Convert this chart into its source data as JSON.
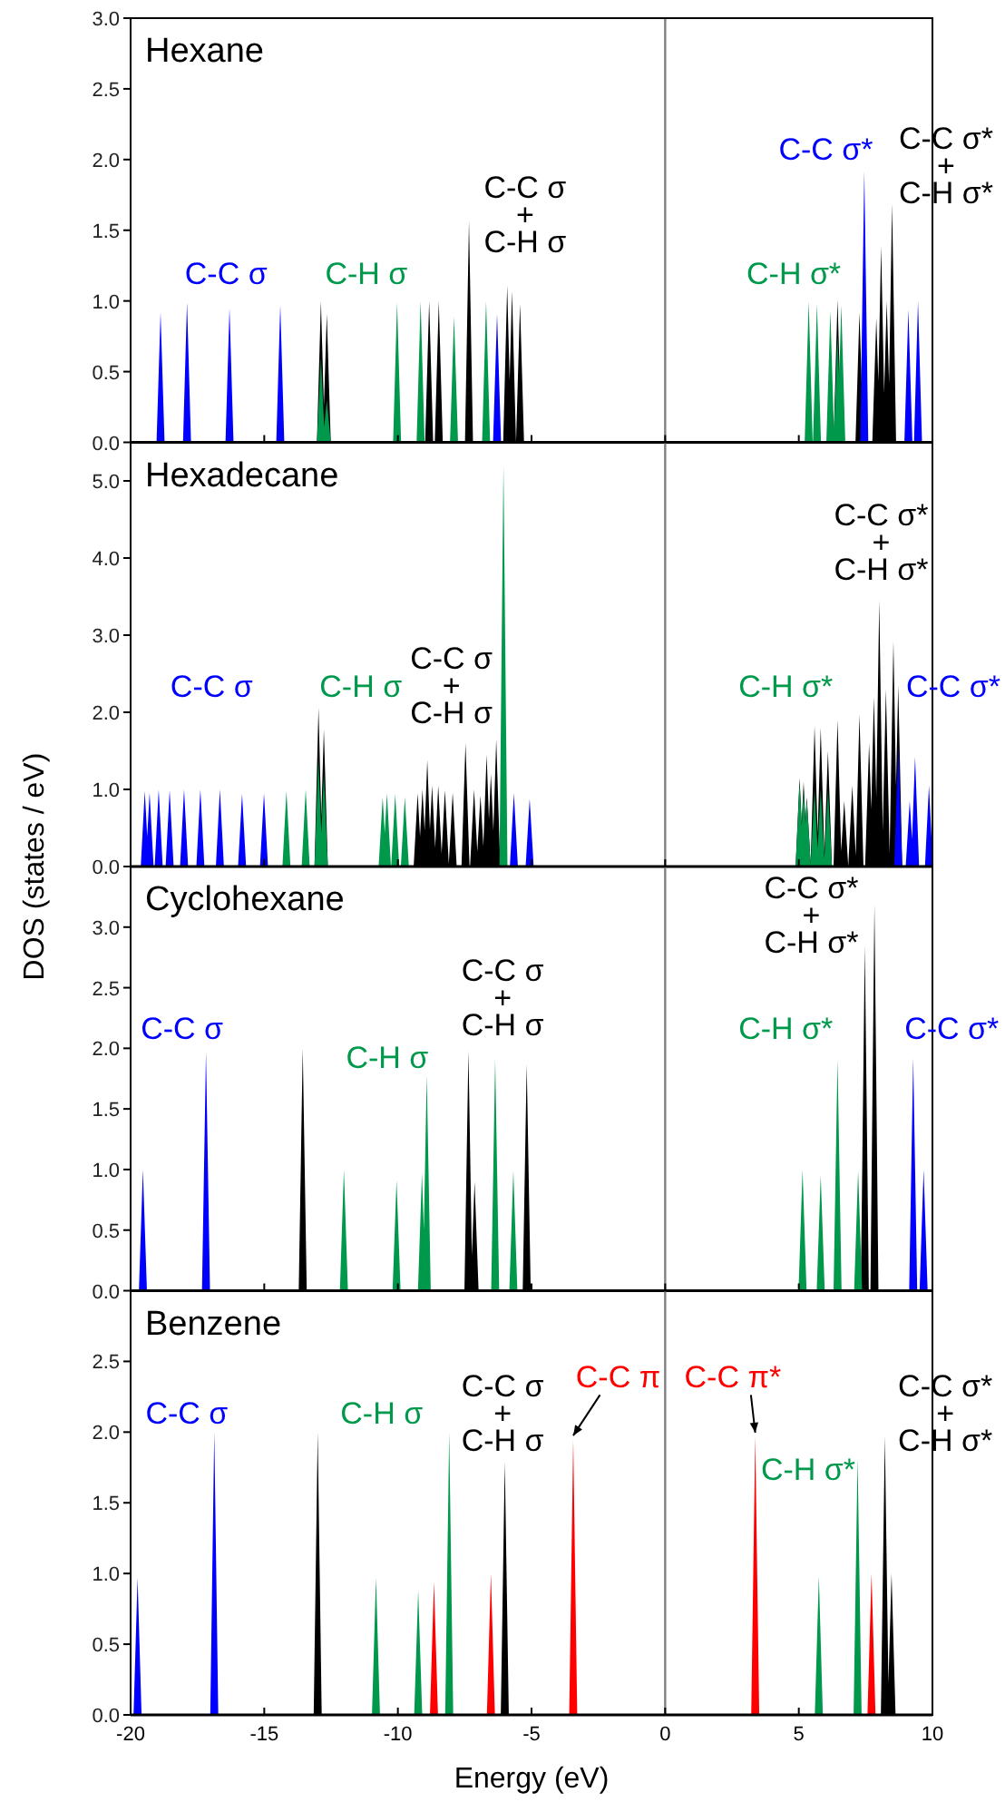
{
  "chart_data": [
    {
      "type": "area",
      "title": "Hexane",
      "xlim": [
        -20,
        10
      ],
      "ylim": [
        0,
        3
      ],
      "xticks": [
        -20,
        -15,
        -10,
        -5,
        0,
        5,
        10
      ],
      "yticks": [
        {
          "value": 0,
          "label": "0.0"
        },
        {
          "value": 0.5,
          "label": "0.5"
        },
        {
          "value": 1,
          "label": "1.0"
        },
        {
          "value": 1.5,
          "label": "1.5"
        },
        {
          "value": 2,
          "label": "2.0"
        },
        {
          "value": 2.5,
          "label": "2.5"
        },
        {
          "value": 3,
          "label": "3.0"
        }
      ],
      "tick_labels": "y",
      "ref_lines": [
        {
          "axis": "x",
          "value": 0,
          "color": "#808080"
        }
      ],
      "series": [
        {
          "name": "C-C σ\n+\nC-H σ",
          "color": "#000000",
          "x": [
            -12.88,
            -12.66,
            -8.83,
            -8.47,
            -7.34,
            -5.91,
            -5.73,
            -5.43
          ],
          "values": [
            1.0,
            0.91,
            1.0,
            1.0,
            1.57,
            1.11,
            1.07,
            0.98
          ]
        },
        {
          "name": "C-C σ*\n+\nC-H σ*",
          "color": "#000000",
          "x": [
            6.45,
            7.27,
            7.9,
            8.08,
            8.29,
            8.49
          ],
          "values": [
            1.01,
            0.92,
            0.88,
            1.39,
            1.0,
            1.69
          ]
        },
        {
          "name": "C-C σ",
          "color": "#0000ff",
          "x": [
            -18.88,
            -17.89,
            -16.3,
            -14.4,
            -6.29
          ],
          "values": [
            0.92,
            0.99,
            0.95,
            0.97,
            0.91
          ]
        },
        {
          "name": "C-C σ*",
          "color": "#0000ff",
          "x": [
            7.45,
            9.1,
            9.46
          ],
          "values": [
            1.92,
            0.94,
            1.0
          ]
        },
        {
          "name": "C-H σ",
          "color": "#00994c",
          "x": [
            -12.88,
            -12.66,
            -10.03,
            -9.15,
            -7.9,
            -6.7
          ],
          "values": [
            0.6,
            0.3,
            0.99,
            1.0,
            0.89,
            1.0
          ]
        },
        {
          "name": "C-H σ*",
          "color": "#00994c",
          "x": [
            5.37,
            5.68,
            6.18,
            6.45,
            6.59
          ],
          "values": [
            1.0,
            0.98,
            0.93,
            0.75,
            0.97
          ]
        }
      ]
    },
    {
      "type": "area",
      "title": "Hexadecane",
      "ylabel": "DOS (states / eV)",
      "xlim": [
        -20,
        10
      ],
      "ylim": [
        0,
        5.5
      ],
      "xticks": [
        -20,
        -15,
        -10,
        -5,
        0,
        5,
        10
      ],
      "yticks": [
        {
          "value": 0,
          "label": "0.0"
        },
        {
          "value": 1,
          "label": "1.0"
        },
        {
          "value": 2,
          "label": "2.0"
        },
        {
          "value": 3,
          "label": "3.0"
        },
        {
          "value": 4,
          "label": "4.0"
        },
        {
          "value": 5,
          "label": "5.0"
        }
      ],
      "tick_labels": "y",
      "ref_lines": [
        {
          "axis": "x",
          "value": 0,
          "color": "#808080"
        }
      ],
      "series": [
        {
          "name": "C-C σ\n+\nC-H σ",
          "color": "#000000",
          "x": [
            -12.97,
            -12.77,
            -9.26,
            -9.08,
            -8.9,
            -8.72,
            -8.49,
            -8.24,
            -7.95,
            -7.47,
            -7.15,
            -6.91,
            -6.68,
            -6.52,
            -6.32
          ],
          "values": [
            2.06,
            1.78,
            0.95,
            1.0,
            1.38,
            1.05,
            1.05,
            0.99,
            0.96,
            1.6,
            1.0,
            0.92,
            1.45,
            1.2,
            1.65
          ]
        },
        {
          "name": "C-C σ*\n+\nC-H σ*",
          "color": "#000000",
          "x": [
            5.03,
            5.18,
            5.3,
            5.59,
            5.82,
            6.09,
            6.45,
            6.7,
            7.0,
            7.27,
            7.63,
            7.81,
            8.01,
            8.26,
            8.54,
            8.72
          ],
          "values": [
            1.15,
            1.1,
            0.9,
            1.82,
            1.8,
            1.5,
            1.9,
            0.85,
            1.05,
            1.97,
            1.6,
            2.2,
            3.45,
            2.3,
            2.92,
            2.35
          ]
        },
        {
          "name": "C-C σ",
          "color": "#0000ff",
          "x": [
            -19.47,
            -19.29,
            -18.95,
            -18.54,
            -18.0,
            -17.39,
            -16.66,
            -15.83,
            -15.01,
            -5.66,
            -5.07
          ],
          "values": [
            0.98,
            0.96,
            1.0,
            0.99,
            1.0,
            1.0,
            1.0,
            0.94,
            0.95,
            0.95,
            0.88
          ]
        },
        {
          "name": "C-C σ*",
          "color": "#0000ff",
          "x": [
            8.72,
            9.15,
            9.35,
            9.87
          ],
          "values": [
            1.55,
            0.85,
            1.42,
            1.05
          ]
        },
        {
          "name": "C-H σ",
          "color": "#00994c",
          "x": [
            -14.17,
            -13.45,
            -12.97,
            -12.77,
            -10.57,
            -10.41,
            -10.1,
            -9.74,
            -6.05
          ],
          "values": [
            0.98,
            1.0,
            1.4,
            1.2,
            0.9,
            0.95,
            0.94,
            0.9,
            5.2
          ]
        },
        {
          "name": "C-H σ*",
          "color": "#00994c",
          "x": [
            5.03,
            5.18,
            5.3,
            5.59,
            5.82,
            6.09
          ],
          "values": [
            1.1,
            1.0,
            0.87,
            1.0,
            1.0,
            1.0
          ]
        }
      ]
    },
    {
      "type": "area",
      "title": "Cyclohexane",
      "xlim": [
        -20,
        10
      ],
      "ylim": [
        0,
        3.5
      ],
      "xticks": [
        -20,
        -15,
        -10,
        -5,
        0,
        5,
        10
      ],
      "yticks": [
        {
          "value": 0,
          "label": "0.0"
        },
        {
          "value": 0.5,
          "label": "0.5"
        },
        {
          "value": 1,
          "label": "1.0"
        },
        {
          "value": 1.5,
          "label": "1.5"
        },
        {
          "value": 2,
          "label": "2.0"
        },
        {
          "value": 2.5,
          "label": "2.5"
        },
        {
          "value": 3,
          "label": "3.0"
        }
      ],
      "tick_labels": "y",
      "ref_lines": [
        {
          "axis": "x",
          "value": 0,
          "color": "#808080"
        }
      ],
      "series": [
        {
          "name": "C-C σ\n+\nC-H σ",
          "color": "#000000",
          "x": [
            -13.56,
            -7.36,
            -7.13,
            -5.18
          ],
          "values": [
            2.0,
            1.98,
            0.9,
            1.87
          ]
        },
        {
          "name": "C-C σ*\n+\nC-H σ*",
          "color": "#000000",
          "x": [
            7.47,
            7.83
          ],
          "values": [
            2.85,
            3.19
          ]
        },
        {
          "name": "C-C σ",
          "color": "#0000ff",
          "x": [
            -19.54,
            -17.18
          ],
          "values": [
            1.0,
            1.97
          ]
        },
        {
          "name": "C-C σ*",
          "color": "#0000ff",
          "x": [
            9.28,
            9.67
          ],
          "values": [
            1.92,
            1.0
          ]
        },
        {
          "name": "C-H σ",
          "color": "#00994c",
          "x": [
            -12.02,
            -10.05,
            -9.1,
            -8.92,
            -6.36,
            -5.68
          ],
          "values": [
            1.0,
            0.91,
            0.97,
            1.78,
            1.91,
            0.99
          ]
        },
        {
          "name": "C-H σ*",
          "color": "#00994c",
          "x": [
            5.14,
            5.82,
            6.45,
            7.22
          ],
          "values": [
            1.0,
            0.95,
            1.91,
            0.99
          ]
        }
      ]
    },
    {
      "type": "area",
      "title": "Benzene",
      "xlabel": "Energy (eV)",
      "xlim": [
        -20,
        10
      ],
      "ylim": [
        0,
        3
      ],
      "xticks": [
        -20,
        -15,
        -10,
        -5,
        0,
        5,
        10
      ],
      "yticks": [
        {
          "value": 0,
          "label": "0.0"
        },
        {
          "value": 0.5,
          "label": "0.5"
        },
        {
          "value": 1,
          "label": "1.0"
        },
        {
          "value": 1.5,
          "label": "1.5"
        },
        {
          "value": 2,
          "label": "2.0"
        },
        {
          "value": 2.5,
          "label": "2.5"
        }
      ],
      "ref_lines": [
        {
          "axis": "x",
          "value": 0,
          "color": "#808080"
        }
      ],
      "series": [
        {
          "name": "C-C σ\n+\nC-H σ",
          "color": "#000000",
          "x": [
            -13.0,
            -6.0
          ],
          "values": [
            2.0,
            1.79
          ]
        },
        {
          "name": "C-C σ*\n+\nC-H σ*",
          "color": "#000000",
          "x": [
            8.22,
            8.47
          ],
          "values": [
            1.97,
            1.0
          ]
        },
        {
          "name": "C-C σ",
          "color": "#0000ff",
          "x": [
            -19.74,
            -16.87
          ],
          "values": [
            0.97,
            2.0
          ]
        },
        {
          "name": "C-H σ",
          "color": "#00994c",
          "x": [
            -10.82,
            -9.24,
            -8.08
          ],
          "values": [
            0.97,
            0.88,
            2.0
          ]
        },
        {
          "name": "C-H σ*",
          "color": "#00994c",
          "x": [
            5.75,
            7.2
          ],
          "values": [
            0.98,
            1.82
          ]
        },
        {
          "name": "C-C π",
          "color": "#ff0000",
          "x": [
            -8.65,
            -6.52,
            -3.44
          ],
          "values": [
            0.94,
            1.0,
            1.95
          ]
        },
        {
          "name": "C-C π*",
          "color": "#ff0000",
          "x": [
            3.37,
            7.72
          ],
          "values": [
            1.97,
            1.0
          ]
        }
      ]
    }
  ]
}
